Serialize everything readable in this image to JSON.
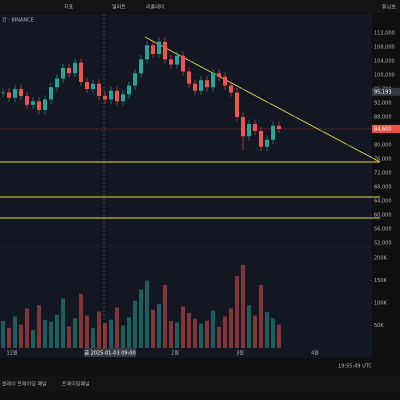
{
  "toolbar": {
    "items": [
      "지표",
      "얼러트",
      "리플레이"
    ],
    "right": "튜닝보"
  },
  "header": {
    "symbol": "간 · BINANCE"
  },
  "chart_data": {
    "type": "candlestick",
    "open": [
      94800,
      95000,
      93500,
      96000,
      94000,
      91500,
      92500,
      90000,
      93000,
      96500,
      99000,
      102000,
      100500,
      103500,
      98000,
      96000,
      97500,
      94000,
      93000,
      95500,
      92500,
      94500,
      97000,
      100500,
      104500,
      108500,
      106000,
      109500,
      104500,
      103000,
      105500,
      101000,
      97500,
      95500,
      98500,
      96500,
      100500,
      99500,
      97000,
      95000,
      88000,
      82500,
      86000,
      84000,
      79500,
      81500,
      85500
    ],
    "high": [
      96200,
      96200,
      97200,
      97200,
      95200,
      93700,
      93700,
      94200,
      97700,
      100200,
      103200,
      103200,
      104700,
      104700,
      99200,
      98700,
      98700,
      95200,
      96700,
      96700,
      95700,
      98200,
      101700,
      105700,
      109700,
      109700,
      110700,
      110700,
      105700,
      106700,
      106700,
      102200,
      98700,
      99700,
      99700,
      101700,
      101700,
      100700,
      98200,
      96200,
      89200,
      87200,
      87200,
      85200,
      82700,
      86700,
      86700
    ],
    "low": [
      93600,
      92300,
      92300,
      92800,
      90300,
      90300,
      88800,
      88800,
      91800,
      95300,
      97800,
      99300,
      99300,
      96800,
      94800,
      94800,
      92800,
      91800,
      91800,
      91300,
      91300,
      93300,
      95800,
      99300,
      103300,
      104800,
      104800,
      103300,
      101800,
      101800,
      99800,
      96300,
      94300,
      94300,
      95300,
      95300,
      98300,
      95800,
      93800,
      86800,
      78500,
      81300,
      82800,
      78300,
      78300,
      80300,
      83400
    ],
    "close": [
      95000,
      93500,
      96000,
      94000,
      91500,
      92500,
      90000,
      93000,
      96500,
      99000,
      102000,
      100500,
      103500,
      98000,
      96000,
      97500,
      94000,
      93000,
      95500,
      92500,
      94500,
      97000,
      100500,
      104500,
      108500,
      106000,
      109500,
      104500,
      103000,
      105500,
      101000,
      97500,
      95500,
      98500,
      96500,
      100500,
      99500,
      97000,
      95000,
      88000,
      82500,
      86000,
      84000,
      79500,
      81500,
      85500,
      84600
    ],
    "volume": [
      60000,
      45000,
      70000,
      52000,
      88000,
      40000,
      95000,
      62000,
      58000,
      74000,
      110000,
      48000,
      66000,
      120000,
      72000,
      44000,
      81000,
      55000,
      63000,
      90000,
      50000,
      68000,
      105000,
      130000,
      150000,
      85000,
      98000,
      140000,
      60000,
      57000,
      92000,
      78000,
      65000,
      54000,
      61000,
      83000,
      47000,
      70000,
      88000,
      160000,
      185000,
      95000,
      72000,
      140000,
      80000,
      66000,
      52000
    ],
    "up_color": "#26a69a",
    "down_color": "#ef5350",
    "ylim": [
      52000,
      112000
    ],
    "yticks": [
      {
        "value": 52000,
        "label": "52,000"
      },
      {
        "value": 56000,
        "label": "56,000"
      },
      {
        "value": 60000,
        "label": "60,000"
      },
      {
        "value": 64000,
        "label": "64,000"
      },
      {
        "value": 68000,
        "label": "68,000"
      },
      {
        "value": 72000,
        "label": "72,000"
      },
      {
        "value": 76000,
        "label": "76,000"
      },
      {
        "value": 80000,
        "label": "80,000"
      },
      {
        "value": 84000,
        "label": "84,000"
      },
      {
        "value": 88000,
        "label": "88,000"
      },
      {
        "value": 92000,
        "label": "92,000"
      },
      {
        "value": 96000,
        "label": "96,000"
      },
      {
        "value": 100000,
        "label": "100,000"
      },
      {
        "value": 104000,
        "label": "104,000"
      },
      {
        "value": 108000,
        "label": "108,000"
      },
      {
        "value": 112000,
        "label": "112,000"
      }
    ],
    "vlim": [
      0,
      200000
    ],
    "vticks": [
      {
        "value": 50000,
        "label": "50K"
      },
      {
        "value": 100000,
        "label": "100K"
      },
      {
        "value": 150000,
        "label": "150K"
      },
      {
        "value": 200000,
        "label": "200K"
      }
    ],
    "price_label": {
      "value": 95193,
      "label": "95,193"
    },
    "last_label": "84,600",
    "time_labels": [
      "12월",
      "금 2025-01-03 09:00",
      "2월",
      "3월",
      "4월"
    ]
  },
  "status": {
    "clock": "19:55:49 UTC"
  },
  "tabs": [
    "를레이 트레이딩 패널",
    "트레이딩패널"
  ]
}
